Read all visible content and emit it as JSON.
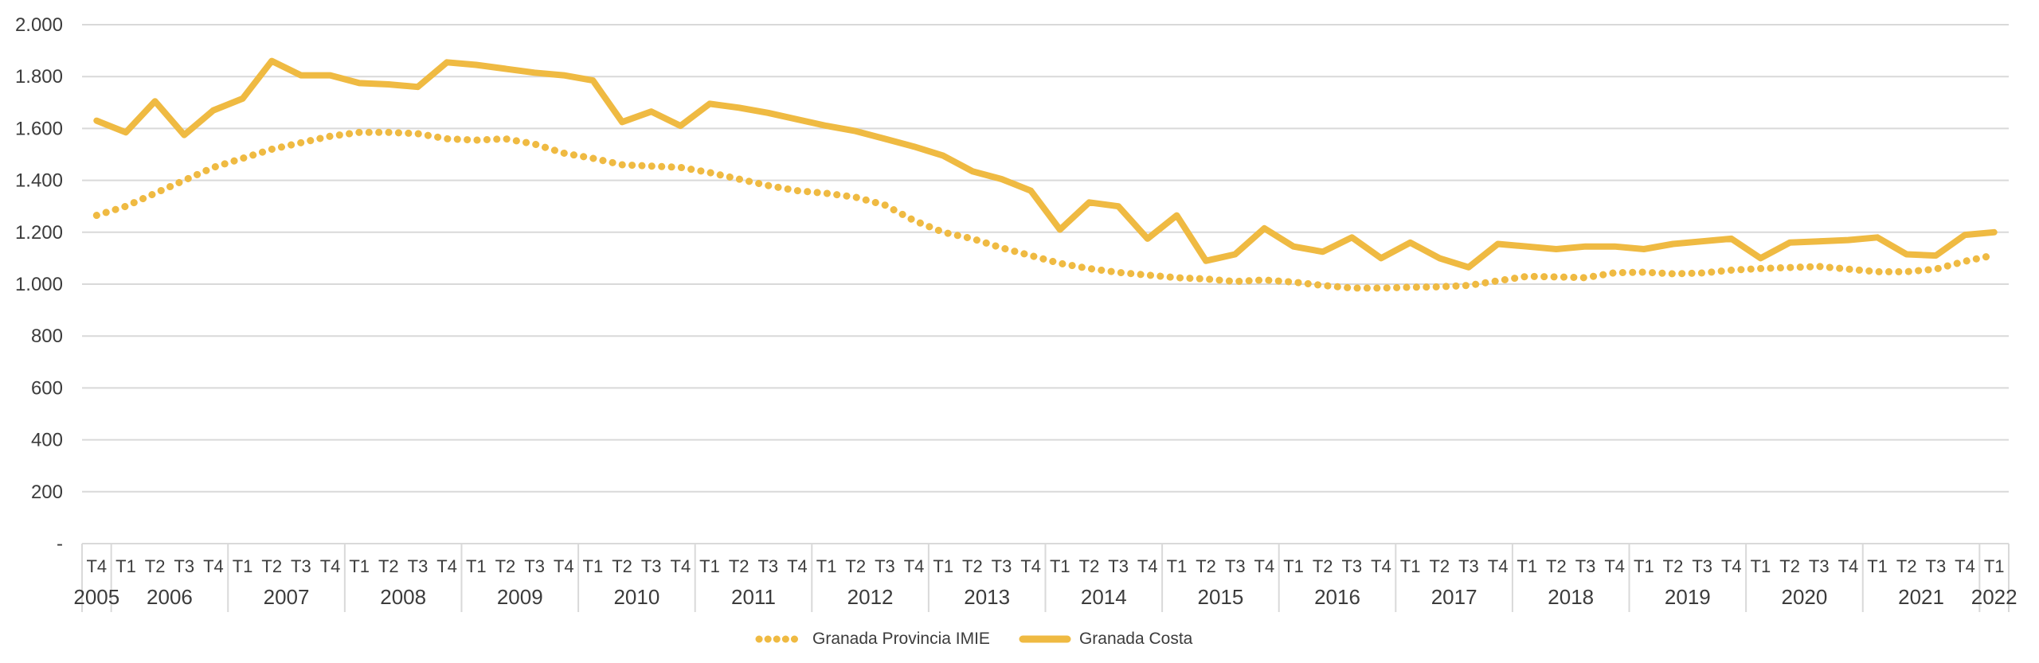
{
  "colors": {
    "series_gold": "#EFBA42",
    "grid": "#D9D9D9",
    "axis_text": "#3C3C3C"
  },
  "chart_data": {
    "type": "line",
    "title": "",
    "grid": true,
    "legend_position": "bottom-center",
    "y_axis": {
      "min": 0,
      "max": 2000,
      "ticks": [
        {
          "label": "-",
          "value": 0
        },
        {
          "label": "200",
          "value": 200
        },
        {
          "label": "400",
          "value": 400
        },
        {
          "label": "600",
          "value": 600
        },
        {
          "label": "800",
          "value": 800
        },
        {
          "label": "1.000",
          "value": 1000
        },
        {
          "label": "1.200",
          "value": 1200
        },
        {
          "label": "1.400",
          "value": 1400
        },
        {
          "label": "1.600",
          "value": 1600
        },
        {
          "label": "1.800",
          "value": 1800
        },
        {
          "label": "2.000",
          "value": 2000
        }
      ]
    },
    "x_axis": {
      "quarters": [
        "T4",
        "T1",
        "T2",
        "T3",
        "T4",
        "T1",
        "T2",
        "T3",
        "T4",
        "T1",
        "T2",
        "T3",
        "T4",
        "T1",
        "T2",
        "T3",
        "T4",
        "T1",
        "T2",
        "T3",
        "T4",
        "T1",
        "T2",
        "T3",
        "T4",
        "T1",
        "T2",
        "T3",
        "T4",
        "T1",
        "T2",
        "T3",
        "T4",
        "T1",
        "T2",
        "T3",
        "T4",
        "T1",
        "T2",
        "T3",
        "T4",
        "T1",
        "T2",
        "T3",
        "T4",
        "T1",
        "T2",
        "T3",
        "T4",
        "T1",
        "T2",
        "T3",
        "T4",
        "T1",
        "T2",
        "T3",
        "T4",
        "T1",
        "T2",
        "T3",
        "T4",
        "T1",
        "T2",
        "T3",
        "T4",
        "T1"
      ],
      "years": [
        {
          "label": "2005",
          "span": 1
        },
        {
          "label": "2006",
          "span": 4
        },
        {
          "label": "2007",
          "span": 4
        },
        {
          "label": "2008",
          "span": 4
        },
        {
          "label": "2009",
          "span": 4
        },
        {
          "label": "2010",
          "span": 4
        },
        {
          "label": "2011",
          "span": 4
        },
        {
          "label": "2012",
          "span": 4
        },
        {
          "label": "2013",
          "span": 4
        },
        {
          "label": "2014",
          "span": 4
        },
        {
          "label": "2015",
          "span": 4
        },
        {
          "label": "2016",
          "span": 4
        },
        {
          "label": "2017",
          "span": 4
        },
        {
          "label": "2018",
          "span": 4
        },
        {
          "label": "2019",
          "span": 4
        },
        {
          "label": "2020",
          "span": 4
        },
        {
          "label": "2021",
          "span": 4
        },
        {
          "label": "2022",
          "span": 1
        }
      ]
    },
    "series": [
      {
        "name": "Granada Provincia IMIE",
        "style": "dotted",
        "color": "#EFBA42",
        "values": [
          1265,
          1300,
          1350,
          1400,
          1450,
          1485,
          1520,
          1545,
          1570,
          1585,
          1585,
          1580,
          1560,
          1555,
          1560,
          1540,
          1505,
          1485,
          1460,
          1455,
          1450,
          1430,
          1405,
          1380,
          1360,
          1350,
          1335,
          1305,
          1245,
          1200,
          1175,
          1140,
          1110,
          1080,
          1060,
          1045,
          1035,
          1025,
          1020,
          1010,
          1016,
          1008,
          995,
          985,
          985,
          988,
          990,
          995,
          1013,
          1030,
          1028,
          1025,
          1044,
          1046,
          1040,
          1043,
          1054,
          1060,
          1064,
          1068,
          1058,
          1048,
          1048,
          1058,
          1088,
          1112
        ]
      },
      {
        "name": "Granada Costa",
        "style": "solid",
        "color": "#EFBA42",
        "values": [
          1630,
          1585,
          1705,
          1575,
          1670,
          1715,
          1860,
          1805,
          1805,
          1775,
          1770,
          1760,
          1855,
          1845,
          1830,
          1815,
          1805,
          1785,
          1625,
          1665,
          1610,
          1695,
          1680,
          1660,
          1635,
          1610,
          1590,
          1560,
          1530,
          1495,
          1435,
          1405,
          1360,
          1210,
          1315,
          1300,
          1175,
          1265,
          1090,
          1115,
          1215,
          1145,
          1125,
          1180,
          1100,
          1160,
          1100,
          1065,
          1155,
          1145,
          1135,
          1145,
          1145,
          1135,
          1155,
          1165,
          1175,
          1100,
          1160,
          1165,
          1170,
          1180,
          1115,
          1110,
          1190,
          1200
        ]
      }
    ]
  }
}
